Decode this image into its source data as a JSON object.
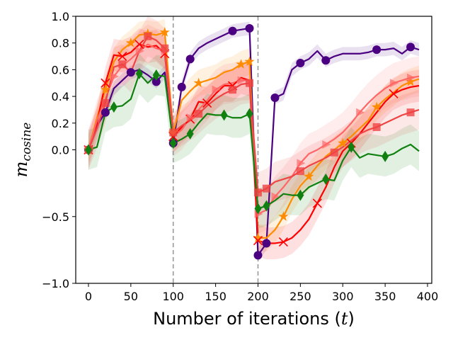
{
  "chart_data": {
    "type": "line",
    "xlabel_main": "Number of iterations (",
    "xlabel_var": "t",
    "xlabel_end": ")",
    "ylabel_main": "m",
    "ylabel_sub": "cosine",
    "xlim": [
      -15,
      405
    ],
    "ylim": [
      -1.0,
      1.0
    ],
    "xticks": [
      0,
      50,
      100,
      150,
      200,
      250,
      300,
      350,
      400
    ],
    "xtick_labels": [
      "0",
      "50",
      "100",
      "150",
      "200",
      "250",
      "300",
      "350",
      "400"
    ],
    "yticks": [
      -1.0,
      -0.5,
      0.0,
      0.2,
      0.4,
      0.6,
      0.8,
      1.0
    ],
    "ytick_labels": [
      "−1.0",
      "−0.5",
      "0.0",
      "0.2",
      "0.4",
      "0.6",
      "0.8",
      "1.0"
    ],
    "vlines": [
      100,
      200
    ],
    "series": [
      {
        "color": "#4b0082",
        "marker": "circle",
        "x": [
          0,
          10,
          20,
          30,
          40,
          50,
          60,
          70,
          80,
          90,
          100,
          110,
          120,
          130,
          140,
          150,
          160,
          170,
          180,
          190,
          200,
          210,
          220,
          230,
          240,
          250,
          260,
          270,
          280,
          290,
          300,
          310,
          320,
          330,
          340,
          350,
          360,
          370,
          380,
          390
        ],
        "y": [
          0.0,
          0.18,
          0.28,
          0.46,
          0.52,
          0.58,
          0.6,
          0.56,
          0.51,
          0.58,
          0.05,
          0.47,
          0.68,
          0.76,
          0.8,
          0.83,
          0.86,
          0.89,
          0.9,
          0.91,
          -0.79,
          -0.7,
          0.39,
          0.42,
          0.6,
          0.65,
          0.68,
          0.74,
          0.67,
          0.7,
          0.72,
          0.72,
          0.72,
          0.73,
          0.75,
          0.75,
          0.76,
          0.72,
          0.77,
          0.75
        ],
        "marker_idx": [
          0,
          2,
          5,
          8,
          10,
          11,
          12,
          17,
          19,
          20,
          21,
          22,
          25,
          28,
          34,
          38
        ],
        "band": 0.05
      },
      {
        "color": "#ff8c00",
        "marker": "star",
        "x": [
          0,
          10,
          20,
          30,
          40,
          50,
          60,
          70,
          80,
          90,
          100,
          110,
          120,
          130,
          140,
          150,
          160,
          170,
          180,
          190,
          200,
          210,
          220,
          230,
          240,
          250,
          260,
          270,
          280,
          290,
          300,
          310,
          320,
          330,
          340,
          350,
          360,
          370,
          380,
          390
        ],
        "y": [
          0.0,
          0.24,
          0.45,
          0.66,
          0.75,
          0.8,
          0.86,
          0.87,
          0.86,
          0.88,
          0.13,
          0.37,
          0.44,
          0.5,
          0.52,
          0.54,
          0.58,
          0.6,
          0.64,
          0.66,
          -0.66,
          -0.66,
          -0.6,
          -0.5,
          -0.37,
          -0.27,
          -0.2,
          -0.12,
          -0.05,
          0.0,
          0.05,
          0.1,
          0.16,
          0.22,
          0.32,
          0.38,
          0.43,
          0.48,
          0.51,
          0.53
        ],
        "marker_idx": [
          0,
          2,
          5,
          7,
          9,
          10,
          13,
          18,
          19,
          20,
          23,
          26,
          30,
          34,
          38
        ],
        "band": 0.1
      },
      {
        "color": "#ff0000",
        "marker": "x",
        "x": [
          0,
          10,
          20,
          30,
          40,
          50,
          60,
          70,
          80,
          90,
          100,
          110,
          120,
          130,
          140,
          150,
          160,
          170,
          180,
          190,
          200,
          210,
          220,
          230,
          240,
          250,
          260,
          270,
          280,
          290,
          300,
          310,
          320,
          330,
          340,
          350,
          360,
          370,
          380,
          390
        ],
        "y": [
          0.0,
          0.2,
          0.5,
          0.71,
          0.7,
          0.73,
          0.79,
          0.77,
          0.78,
          0.72,
          0.1,
          0.17,
          0.23,
          0.36,
          0.35,
          0.42,
          0.48,
          0.48,
          0.54,
          0.52,
          -0.68,
          -0.7,
          -0.7,
          -0.69,
          -0.66,
          -0.6,
          -0.52,
          -0.4,
          -0.28,
          -0.13,
          -0.01,
          0.05,
          0.12,
          0.2,
          0.28,
          0.36,
          0.42,
          0.45,
          0.47,
          0.48
        ],
        "marker_idx": [
          0,
          2,
          4,
          6,
          9,
          10,
          12,
          14,
          17,
          20,
          23,
          27,
          31,
          36
        ],
        "band": 0.12
      },
      {
        "color": "#ff6666",
        "marker": "triangle-right",
        "x": [
          0,
          10,
          20,
          30,
          40,
          50,
          60,
          70,
          80,
          90,
          100,
          110,
          120,
          130,
          140,
          150,
          160,
          170,
          180,
          190,
          200,
          210,
          220,
          230,
          240,
          250,
          260,
          270,
          280,
          290,
          300,
          310,
          320,
          330,
          340,
          350,
          360,
          370,
          380,
          390
        ],
        "y": [
          0.0,
          0.22,
          0.38,
          0.55,
          0.63,
          0.68,
          0.74,
          0.79,
          0.76,
          0.74,
          0.1,
          0.15,
          0.24,
          0.3,
          0.37,
          0.45,
          0.49,
          0.5,
          0.52,
          0.52,
          -0.48,
          -0.45,
          -0.35,
          -0.28,
          -0.2,
          -0.1,
          -0.03,
          0.0,
          0.04,
          0.08,
          0.13,
          0.2,
          0.28,
          0.35,
          0.41,
          0.46,
          0.5,
          0.52,
          0.54,
          0.55
        ],
        "marker_idx": [
          0,
          3,
          6,
          9,
          12,
          15,
          18,
          20,
          22,
          25,
          28,
          32,
          36,
          38
        ],
        "band": 0.15
      },
      {
        "color": "#ef4444",
        "marker": "square",
        "x": [
          0,
          10,
          20,
          30,
          40,
          50,
          60,
          70,
          80,
          90,
          100,
          110,
          120,
          130,
          140,
          150,
          160,
          170,
          180,
          190,
          200,
          210,
          220,
          230,
          240,
          250,
          260,
          270,
          280,
          290,
          300,
          310,
          320,
          330,
          340,
          350,
          360,
          370,
          380,
          390
        ],
        "y": [
          0.0,
          0.16,
          0.35,
          0.62,
          0.64,
          0.58,
          0.74,
          0.85,
          0.82,
          0.76,
          0.13,
          0.18,
          0.22,
          0.27,
          0.33,
          0.38,
          0.42,
          0.45,
          0.49,
          0.5,
          -0.32,
          -0.29,
          -0.24,
          -0.22,
          -0.2,
          -0.16,
          -0.12,
          -0.09,
          -0.06,
          -0.02,
          0.02,
          0.07,
          0.12,
          0.15,
          0.17,
          0.2,
          0.23,
          0.26,
          0.28,
          0.3
        ],
        "marker_idx": [
          0,
          2,
          4,
          7,
          9,
          10,
          13,
          17,
          19,
          20,
          21,
          25,
          29,
          34,
          38
        ],
        "band": 0.15
      },
      {
        "color": "#108010",
        "marker": "diamond",
        "x": [
          0,
          10,
          20,
          30,
          40,
          50,
          60,
          70,
          80,
          90,
          100,
          110,
          120,
          130,
          140,
          150,
          160,
          170,
          180,
          190,
          200,
          210,
          220,
          230,
          240,
          250,
          260,
          270,
          280,
          290,
          300,
          310,
          320,
          330,
          340,
          350,
          360,
          370,
          380,
          390
        ],
        "y": [
          0.0,
          0.02,
          0.28,
          0.32,
          0.33,
          0.38,
          0.57,
          0.5,
          0.56,
          0.55,
          0.05,
          0.08,
          0.12,
          0.2,
          0.27,
          0.26,
          0.26,
          0.24,
          0.24,
          0.27,
          -0.44,
          -0.42,
          -0.38,
          -0.33,
          -0.34,
          -0.34,
          -0.28,
          -0.25,
          -0.22,
          -0.23,
          -0.08,
          0.02,
          -0.06,
          -0.03,
          -0.04,
          -0.05,
          -0.03,
          0.01,
          0.04,
          -0.01
        ],
        "marker_idx": [
          0,
          3,
          6,
          8,
          10,
          12,
          16,
          19,
          20,
          21,
          25,
          28,
          31,
          35
        ],
        "band": 0.15
      }
    ]
  }
}
